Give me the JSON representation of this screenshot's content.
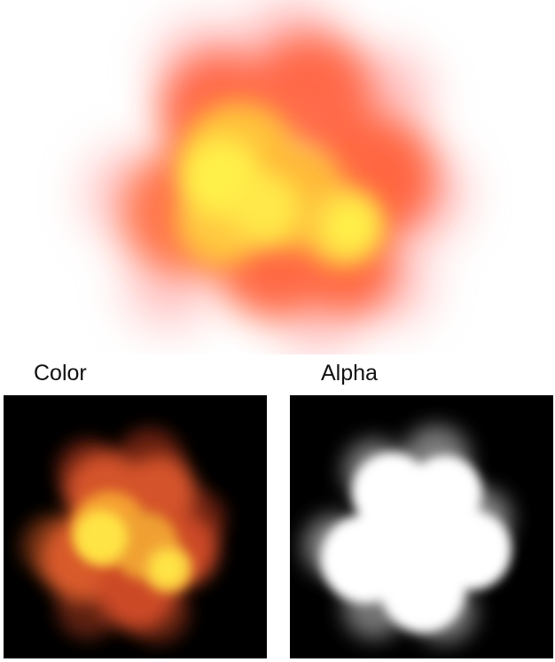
{
  "labels": {
    "color": "Color",
    "alpha": "Alpha"
  },
  "palette": {
    "core": "#fff04a",
    "mid": "#ffc23a",
    "outer": "#ff5a2a",
    "edge": "#ff7d7d",
    "mask": "#ffffff",
    "background": "#000000"
  }
}
